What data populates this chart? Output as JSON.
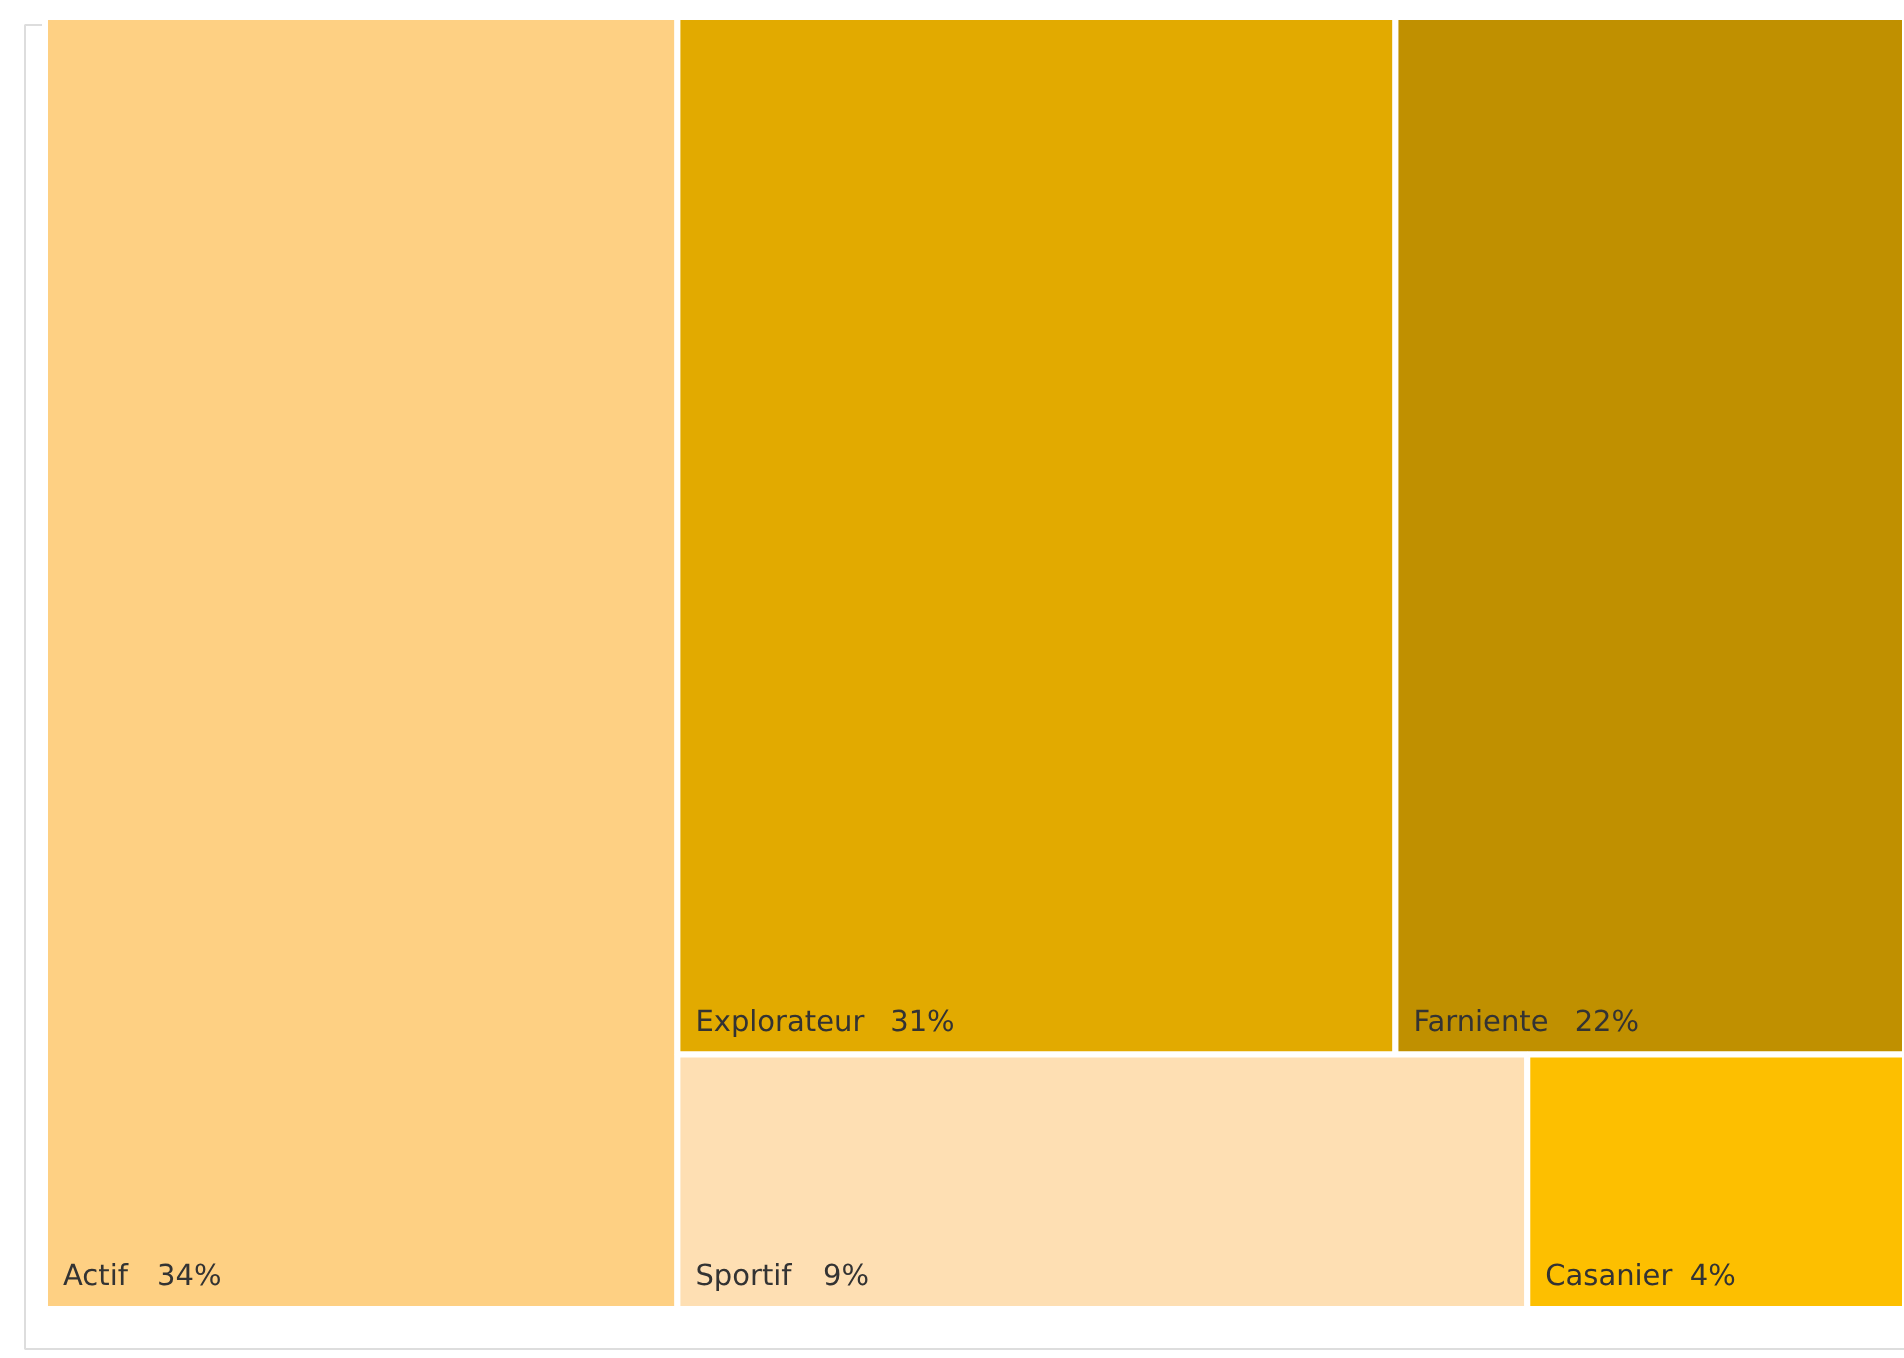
{
  "chart_data": {
    "type": "other",
    "categories": [
      "Actif",
      "Explorateur",
      "Farniente",
      "Sportif",
      "Casanier"
    ],
    "values": [
      34,
      31,
      22,
      9,
      4
    ],
    "value_labels": [
      "34%",
      "31%",
      "22%",
      "9%",
      "4%"
    ],
    "colors": [
      "#fed083",
      "#e2aa00",
      "#c09000",
      "#fedfb3",
      "#fdbf00"
    ]
  }
}
